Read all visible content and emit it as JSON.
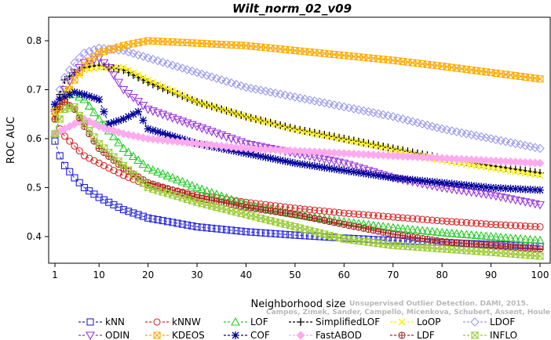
{
  "chart_data": {
    "type": "line",
    "title": "Wilt_norm_02_v09",
    "xlabel": "Neighborhood size",
    "ylabel": "ROC AUC",
    "xlim": [
      1,
      100
    ],
    "ylim": [
      0.35,
      0.85
    ],
    "xticks": [
      "1",
      "10",
      "20",
      "30",
      "40",
      "50",
      "60",
      "70",
      "80",
      "90",
      "100"
    ],
    "yticks": [
      "0.4",
      "0.5",
      "0.6",
      "0.7",
      "0.8"
    ],
    "watermark": [
      "Unsupervised Outlier Detection. DAMI, 2015.",
      "Campos, Zimek, Sander, Campello, Micenkova, Schubert, Assent, Houle"
    ],
    "legend_position": "bottom",
    "grid": false,
    "series": [
      {
        "name": "kNN",
        "color": "#2222dd",
        "marker": "square",
        "points": [
          [
            1,
            0.595
          ],
          [
            2,
            0.565
          ],
          [
            3,
            0.545
          ],
          [
            5,
            0.52
          ],
          [
            7,
            0.5
          ],
          [
            10,
            0.48
          ],
          [
            15,
            0.455
          ],
          [
            20,
            0.438
          ],
          [
            30,
            0.42
          ],
          [
            40,
            0.41
          ],
          [
            50,
            0.403
          ],
          [
            60,
            0.397
          ],
          [
            70,
            0.392
          ],
          [
            80,
            0.388
          ],
          [
            90,
            0.384
          ],
          [
            100,
            0.38
          ]
        ]
      },
      {
        "name": "kNNW",
        "color": "#dd2222",
        "marker": "circle",
        "points": [
          [
            1,
            0.64
          ],
          [
            2,
            0.62
          ],
          [
            3,
            0.605
          ],
          [
            5,
            0.585
          ],
          [
            7,
            0.565
          ],
          [
            10,
            0.55
          ],
          [
            15,
            0.525
          ],
          [
            20,
            0.505
          ],
          [
            30,
            0.485
          ],
          [
            40,
            0.47
          ],
          [
            50,
            0.458
          ],
          [
            60,
            0.448
          ],
          [
            70,
            0.44
          ],
          [
            80,
            0.432
          ],
          [
            90,
            0.425
          ],
          [
            100,
            0.42
          ]
        ]
      },
      {
        "name": "LOF",
        "color": "#22cc22",
        "marker": "triangle",
        "points": [
          [
            1,
            0.61
          ],
          [
            2,
            0.66
          ],
          [
            3,
            0.69
          ],
          [
            5,
            0.69
          ],
          [
            7,
            0.68
          ],
          [
            10,
            0.64
          ],
          [
            15,
            0.58
          ],
          [
            20,
            0.54
          ],
          [
            30,
            0.5
          ],
          [
            40,
            0.465
          ],
          [
            50,
            0.445
          ],
          [
            60,
            0.43
          ],
          [
            70,
            0.418
          ],
          [
            80,
            0.408
          ],
          [
            90,
            0.4
          ],
          [
            100,
            0.392
          ]
        ]
      },
      {
        "name": "SimplifiedLOF",
        "color": "#000000",
        "marker": "plus",
        "points": [
          [
            1,
            0.66
          ],
          [
            2,
            0.69
          ],
          [
            3,
            0.72
          ],
          [
            5,
            0.735
          ],
          [
            7,
            0.745
          ],
          [
            10,
            0.75
          ],
          [
            15,
            0.74
          ],
          [
            20,
            0.715
          ],
          [
            30,
            0.675
          ],
          [
            40,
            0.645
          ],
          [
            50,
            0.62
          ],
          [
            60,
            0.6
          ],
          [
            70,
            0.58
          ],
          [
            80,
            0.56
          ],
          [
            90,
            0.545
          ],
          [
            100,
            0.53
          ]
        ]
      },
      {
        "name": "LoOP",
        "color": "#ffee00",
        "marker": "x",
        "points": [
          [
            1,
            0.64
          ],
          [
            2,
            0.67
          ],
          [
            3,
            0.7
          ],
          [
            5,
            0.72
          ],
          [
            7,
            0.74
          ],
          [
            10,
            0.745
          ],
          [
            15,
            0.745
          ],
          [
            20,
            0.72
          ],
          [
            30,
            0.675
          ],
          [
            40,
            0.645
          ],
          [
            50,
            0.618
          ],
          [
            60,
            0.598
          ],
          [
            70,
            0.578
          ],
          [
            80,
            0.555
          ],
          [
            90,
            0.54
          ],
          [
            100,
            0.525
          ]
        ]
      },
      {
        "name": "LDOF",
        "color": "#9999ee",
        "marker": "diamond",
        "points": [
          [
            1,
            0.67
          ],
          [
            2,
            0.7
          ],
          [
            3,
            0.725
          ],
          [
            5,
            0.755
          ],
          [
            7,
            0.775
          ],
          [
            10,
            0.785
          ],
          [
            15,
            0.78
          ],
          [
            20,
            0.765
          ],
          [
            30,
            0.735
          ],
          [
            40,
            0.705
          ],
          [
            50,
            0.685
          ],
          [
            60,
            0.665
          ],
          [
            70,
            0.645
          ],
          [
            80,
            0.62
          ],
          [
            90,
            0.6
          ],
          [
            100,
            0.58
          ]
        ]
      },
      {
        "name": "ODIN",
        "color": "#9933dd",
        "marker": "invtriangle",
        "points": [
          [
            1,
            0.65
          ],
          [
            3,
            0.7
          ],
          [
            5,
            0.735
          ],
          [
            7,
            0.755
          ],
          [
            10,
            0.765
          ],
          [
            12,
            0.745
          ],
          [
            15,
            0.7
          ],
          [
            20,
            0.66
          ],
          [
            30,
            0.625
          ],
          [
            40,
            0.59
          ],
          [
            50,
            0.57
          ],
          [
            60,
            0.55
          ],
          [
            70,
            0.52
          ],
          [
            80,
            0.5
          ],
          [
            90,
            0.485
          ],
          [
            100,
            0.465
          ]
        ]
      },
      {
        "name": "KDEOS",
        "color": "#ffaa00",
        "marker": "squarex",
        "points": [
          [
            1,
            0.655
          ],
          [
            2,
            0.66
          ],
          [
            3,
            0.68
          ],
          [
            5,
            0.72
          ],
          [
            7,
            0.75
          ],
          [
            10,
            0.775
          ],
          [
            15,
            0.79
          ],
          [
            20,
            0.8
          ],
          [
            30,
            0.795
          ],
          [
            40,
            0.79
          ],
          [
            50,
            0.78
          ],
          [
            60,
            0.77
          ],
          [
            70,
            0.76
          ],
          [
            80,
            0.748
          ],
          [
            90,
            0.735
          ],
          [
            100,
            0.722
          ]
        ]
      },
      {
        "name": "COF",
        "color": "#000099",
        "marker": "star",
        "points": [
          [
            1,
            0.67
          ],
          [
            2,
            0.68
          ],
          [
            3,
            0.685
          ],
          [
            5,
            0.695
          ],
          [
            7,
            0.69
          ],
          [
            10,
            0.68
          ],
          [
            12,
            0.63
          ],
          [
            15,
            0.64
          ],
          [
            18,
            0.655
          ],
          [
            20,
            0.62
          ],
          [
            30,
            0.59
          ],
          [
            40,
            0.57
          ],
          [
            50,
            0.55
          ],
          [
            60,
            0.535
          ],
          [
            70,
            0.52
          ],
          [
            80,
            0.51
          ],
          [
            90,
            0.5
          ],
          [
            100,
            0.495
          ]
        ]
      },
      {
        "name": "FastABOD",
        "color": "#ffaaee",
        "marker": "diamondfill",
        "points": [
          [
            1,
            0.61
          ],
          [
            3,
            0.62
          ],
          [
            5,
            0.63
          ],
          [
            7,
            0.64
          ],
          [
            10,
            0.625
          ],
          [
            15,
            0.61
          ],
          [
            20,
            0.6
          ],
          [
            30,
            0.59
          ],
          [
            40,
            0.58
          ],
          [
            50,
            0.575
          ],
          [
            60,
            0.57
          ],
          [
            70,
            0.565
          ],
          [
            80,
            0.56
          ],
          [
            90,
            0.555
          ],
          [
            100,
            0.55
          ]
        ]
      },
      {
        "name": "LDF",
        "color": "#aa2222",
        "marker": "circleplus",
        "points": [
          [
            1,
            0.64
          ],
          [
            2,
            0.665
          ],
          [
            3,
            0.675
          ],
          [
            5,
            0.66
          ],
          [
            7,
            0.625
          ],
          [
            10,
            0.58
          ],
          [
            15,
            0.54
          ],
          [
            20,
            0.51
          ],
          [
            30,
            0.48
          ],
          [
            40,
            0.46
          ],
          [
            50,
            0.445
          ],
          [
            60,
            0.425
          ],
          [
            70,
            0.405
          ],
          [
            80,
            0.39
          ],
          [
            90,
            0.382
          ],
          [
            100,
            0.375
          ]
        ]
      },
      {
        "name": "INFLO",
        "color": "#99cc33",
        "marker": "hourglass",
        "points": [
          [
            1,
            0.61
          ],
          [
            2,
            0.64
          ],
          [
            3,
            0.66
          ],
          [
            5,
            0.665
          ],
          [
            7,
            0.63
          ],
          [
            10,
            0.59
          ],
          [
            15,
            0.545
          ],
          [
            20,
            0.5
          ],
          [
            30,
            0.47
          ],
          [
            40,
            0.445
          ],
          [
            50,
            0.42
          ],
          [
            60,
            0.395
          ],
          [
            70,
            0.382
          ],
          [
            80,
            0.375
          ],
          [
            90,
            0.368
          ],
          [
            100,
            0.36
          ]
        ]
      }
    ]
  }
}
